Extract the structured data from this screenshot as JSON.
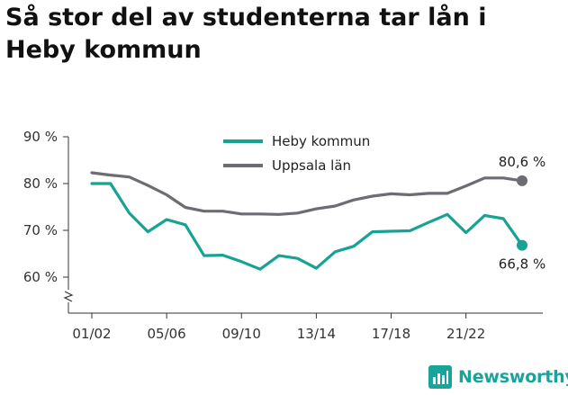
{
  "title": "Så stor del av studenterna tar lån i Heby kommun",
  "brand": {
    "name": "Newsworthy",
    "icon": "newsworthy-logo-icon"
  },
  "colors": {
    "heby": "#16a394",
    "uppsala": "#6c6c72",
    "axis": "#333333",
    "brand": "#1aa39a"
  },
  "chart_data": {
    "type": "line",
    "grid": false,
    "legend_position": "top-center",
    "ylim": [
      60,
      90
    ],
    "yticks": [
      60,
      70,
      80,
      90
    ],
    "ytick_labels": [
      "60 %",
      "70 %",
      "80 %",
      "90 %"
    ],
    "x_count": 24,
    "xtick_positions": [
      0,
      4,
      8,
      12,
      16,
      20
    ],
    "xtick_labels": [
      "01/02",
      "05/06",
      "09/10",
      "13/14",
      "17/18",
      "21/22"
    ],
    "series": [
      {
        "name": "Heby kommun",
        "color": "#16a394",
        "end_label": "66,8 %",
        "values": [
          80.0,
          80.0,
          73.7,
          69.7,
          72.3,
          71.2,
          64.6,
          64.7,
          63.3,
          61.7,
          64.6,
          64.0,
          61.9,
          65.4,
          66.6,
          69.7,
          69.8,
          69.9,
          71.7,
          73.4,
          69.5,
          73.2,
          72.5,
          66.8
        ]
      },
      {
        "name": "Uppsala län",
        "color": "#6c6c72",
        "end_label": "80,6 %",
        "values": [
          82.3,
          81.8,
          81.4,
          79.6,
          77.6,
          74.9,
          74.1,
          74.1,
          73.5,
          73.5,
          73.4,
          73.7,
          74.6,
          75.2,
          76.5,
          77.3,
          77.8,
          77.6,
          77.9,
          77.9,
          79.5,
          81.2,
          81.2,
          80.6
        ]
      }
    ]
  }
}
